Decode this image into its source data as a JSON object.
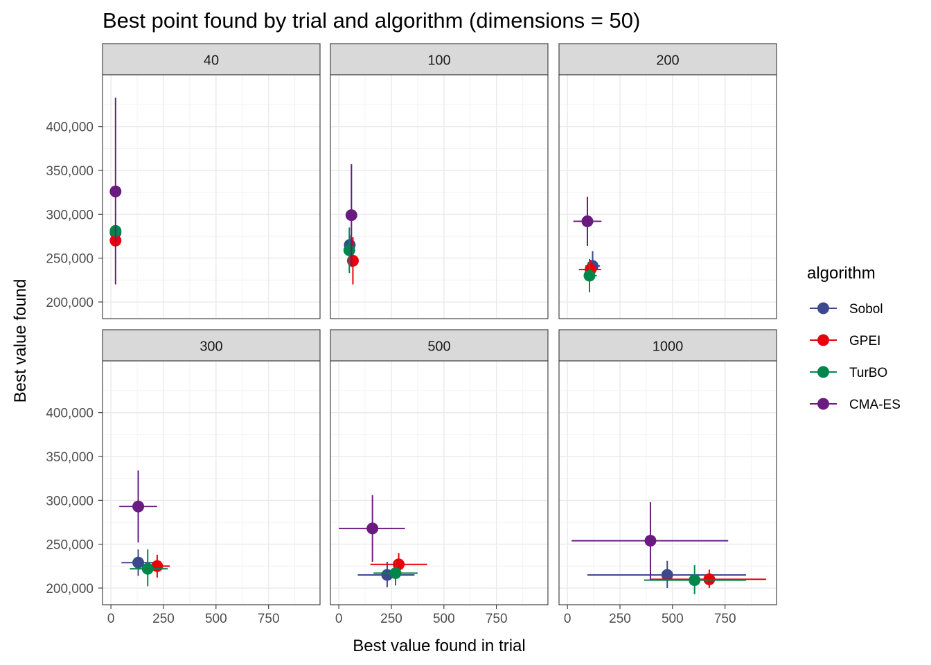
{
  "chart_data": {
    "type": "scatter",
    "title": "Best point found by trial and algorithm (dimensions = 50)",
    "xlabel": "Best value found in trial",
    "ylabel": "Best value found",
    "xlim": [
      -40,
      995
    ],
    "ylim": [
      181000,
      459000
    ],
    "x_ticks": [
      0,
      250,
      500,
      750
    ],
    "x_tick_labels": [
      "0",
      "250",
      "500",
      "750"
    ],
    "y_ticks": [
      200000,
      250000,
      300000,
      350000,
      400000
    ],
    "y_tick_labels": [
      "200,000",
      "250,000",
      "300,000",
      "350,000",
      "400,000"
    ],
    "grid": true,
    "legend": {
      "title": "algorithm",
      "position": "right",
      "entries": [
        {
          "name": "Sobol",
          "color": "#3B4A8C"
        },
        {
          "name": "GPEI",
          "color": "#E8000B"
        },
        {
          "name": "TurBO",
          "color": "#00854A"
        },
        {
          "name": "CMA-ES",
          "color": "#6A1B7F"
        }
      ]
    },
    "panels": [
      {
        "label": "40",
        "points": [
          {
            "algorithm": "Sobol",
            "x": 22,
            "y": 279000,
            "xmin": 22,
            "xmax": 22,
            "ymin": 273000,
            "ymax": 285000
          },
          {
            "algorithm": "GPEI",
            "x": 22,
            "y": 270000,
            "xmin": 22,
            "xmax": 22,
            "ymin": 264000,
            "ymax": 276000
          },
          {
            "algorithm": "TurBO",
            "x": 22,
            "y": 281000,
            "xmin": 22,
            "xmax": 22,
            "ymin": 275000,
            "ymax": 287000
          },
          {
            "algorithm": "CMA-ES",
            "x": 22,
            "y": 326000,
            "xmin": 22,
            "xmax": 22,
            "ymin": 220000,
            "ymax": 433000
          }
        ]
      },
      {
        "label": "100",
        "points": [
          {
            "algorithm": "Sobol",
            "x": 52,
            "y": 265000,
            "xmin": 52,
            "xmax": 52,
            "ymin": 256000,
            "ymax": 276000
          },
          {
            "algorithm": "GPEI",
            "x": 67,
            "y": 247000,
            "xmin": 67,
            "xmax": 67,
            "ymin": 220000,
            "ymax": 274000
          },
          {
            "algorithm": "TurBO",
            "x": 50,
            "y": 259000,
            "xmin": 50,
            "xmax": 50,
            "ymin": 233000,
            "ymax": 285000
          },
          {
            "algorithm": "CMA-ES",
            "x": 60,
            "y": 299000,
            "xmin": 60,
            "xmax": 60,
            "ymin": 240000,
            "ymax": 357000
          }
        ]
      },
      {
        "label": "200",
        "points": [
          {
            "algorithm": "Sobol",
            "x": 120,
            "y": 241000,
            "xmin": 85,
            "xmax": 155,
            "ymin": 225000,
            "ymax": 258000
          },
          {
            "algorithm": "GPEI",
            "x": 110,
            "y": 237000,
            "xmin": 55,
            "xmax": 160,
            "ymin": 226000,
            "ymax": 248000
          },
          {
            "algorithm": "TurBO",
            "x": 105,
            "y": 230000,
            "xmin": 80,
            "xmax": 140,
            "ymin": 211000,
            "ymax": 249000
          },
          {
            "algorithm": "CMA-ES",
            "x": 95,
            "y": 292000,
            "xmin": 28,
            "xmax": 162,
            "ymin": 264000,
            "ymax": 320000
          }
        ]
      },
      {
        "label": "300",
        "points": [
          {
            "algorithm": "Sobol",
            "x": 130,
            "y": 229000,
            "xmin": 50,
            "xmax": 210,
            "ymin": 214000,
            "ymax": 244000
          },
          {
            "algorithm": "GPEI",
            "x": 220,
            "y": 225000,
            "xmin": 185,
            "xmax": 280,
            "ymin": 212000,
            "ymax": 238000
          },
          {
            "algorithm": "TurBO",
            "x": 175,
            "y": 222000,
            "xmin": 90,
            "xmax": 270,
            "ymin": 202000,
            "ymax": 244000
          },
          {
            "algorithm": "CMA-ES",
            "x": 130,
            "y": 293000,
            "xmin": 40,
            "xmax": 220,
            "ymin": 252000,
            "ymax": 334000
          }
        ]
      },
      {
        "label": "500",
        "points": [
          {
            "algorithm": "Sobol",
            "x": 230,
            "y": 215000,
            "xmin": 90,
            "xmax": 360,
            "ymin": 201000,
            "ymax": 230000
          },
          {
            "algorithm": "GPEI",
            "x": 285,
            "y": 227000,
            "xmin": 150,
            "xmax": 420,
            "ymin": 214000,
            "ymax": 240000
          },
          {
            "algorithm": "TurBO",
            "x": 270,
            "y": 217000,
            "xmin": 165,
            "xmax": 375,
            "ymin": 203000,
            "ymax": 231000
          },
          {
            "algorithm": "CMA-ES",
            "x": 160,
            "y": 268000,
            "xmin": 0,
            "xmax": 315,
            "ymin": 230000,
            "ymax": 306000
          }
        ]
      },
      {
        "label": "1000",
        "points": [
          {
            "algorithm": "Sobol",
            "x": 475,
            "y": 215000,
            "xmin": 95,
            "xmax": 850,
            "ymin": 200000,
            "ymax": 231000
          },
          {
            "algorithm": "GPEI",
            "x": 675,
            "y": 210000,
            "xmin": 395,
            "xmax": 945,
            "ymin": 200000,
            "ymax": 221000
          },
          {
            "algorithm": "TurBO",
            "x": 605,
            "y": 209000,
            "xmin": 365,
            "xmax": 850,
            "ymin": 193000,
            "ymax": 226000
          },
          {
            "algorithm": "CMA-ES",
            "x": 395,
            "y": 254000,
            "xmin": 20,
            "xmax": 765,
            "ymin": 209000,
            "ymax": 298000
          }
        ]
      }
    ]
  }
}
